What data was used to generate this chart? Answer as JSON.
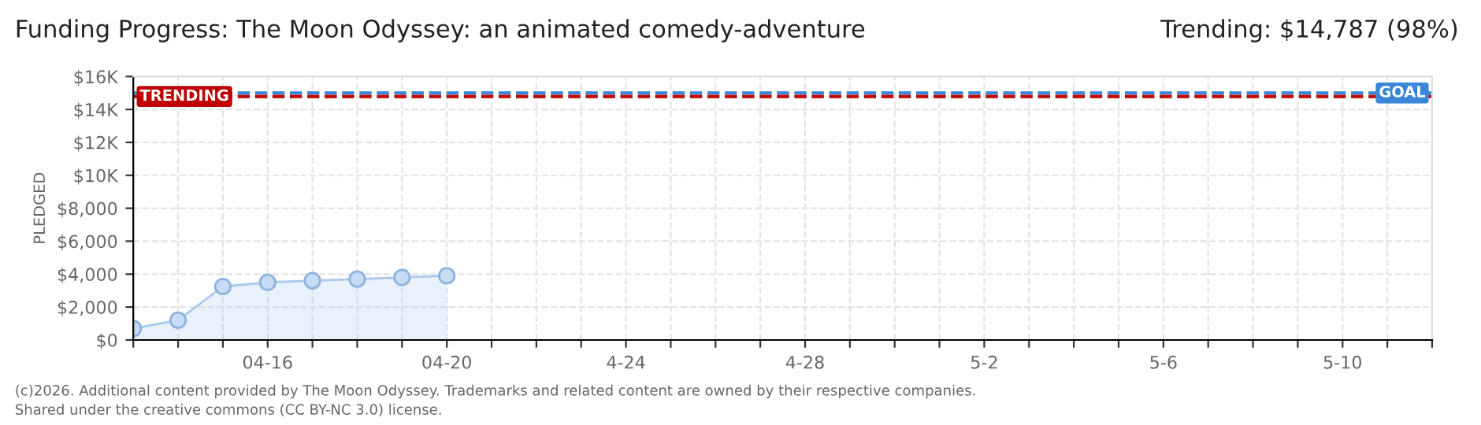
{
  "chart_data": {
    "type": "area",
    "title": "Funding Progress: The Moon Odyssey: an animated comedy-adventure",
    "ylabel": "PLEDGED",
    "x": [
      "2026-04-13",
      "2026-04-14",
      "2026-04-15",
      "2026-04-16",
      "2026-04-17",
      "2026-04-18",
      "2026-04-19",
      "2026-04-20"
    ],
    "series": [
      {
        "color": "#a9c9ec",
        "values": [
          700,
          1200,
          3250,
          3500,
          3600,
          3700,
          3800,
          3900
        ]
      }
    ],
    "marker": "circle",
    "xlim": [
      "2026-04-13",
      "2026-05-12"
    ],
    "xticks": [
      {
        "value": "2026-04-13",
        "label": null
      },
      {
        "value": "2026-04-14",
        "label": null
      },
      {
        "value": "2026-04-15",
        "label": null
      },
      {
        "value": "2026-04-16",
        "label": "04-16"
      },
      {
        "value": "2026-04-17",
        "label": null
      },
      {
        "value": "2026-04-18",
        "label": null
      },
      {
        "value": "2026-04-19",
        "label": null
      },
      {
        "value": "2026-04-20",
        "label": "04-20"
      },
      {
        "value": "2026-04-21",
        "label": null
      },
      {
        "value": "2026-04-22",
        "label": null
      },
      {
        "value": "2026-04-23",
        "label": null
      },
      {
        "value": "2026-04-24",
        "label": "4-24"
      },
      {
        "value": "2026-04-25",
        "label": null
      },
      {
        "value": "2026-04-26",
        "label": null
      },
      {
        "value": "2026-04-27",
        "label": null
      },
      {
        "value": "2026-04-28",
        "label": "4-28"
      },
      {
        "value": "2026-04-29",
        "label": null
      },
      {
        "value": "2026-04-30",
        "label": null
      },
      {
        "value": "2026-05-01",
        "label": null
      },
      {
        "value": "2026-05-02",
        "label": "5-2"
      },
      {
        "value": "2026-05-03",
        "label": null
      },
      {
        "value": "2026-05-04",
        "label": null
      },
      {
        "value": "2026-05-05",
        "label": null
      },
      {
        "value": "2026-05-06",
        "label": "5-6"
      },
      {
        "value": "2026-05-07",
        "label": null
      },
      {
        "value": "2026-05-08",
        "label": null
      },
      {
        "value": "2026-05-09",
        "label": null
      },
      {
        "value": "2026-05-10",
        "label": "5-10"
      },
      {
        "value": "2026-05-11",
        "label": null
      },
      {
        "value": "2026-05-12",
        "label": null
      }
    ],
    "ylim": [
      0,
      16000
    ],
    "yticks": [
      {
        "value": 0,
        "label": "$0"
      },
      {
        "value": 2000,
        "label": "$2,000"
      },
      {
        "value": 4000,
        "label": "$4,000"
      },
      {
        "value": 6000,
        "label": "$6,000"
      },
      {
        "value": 8000,
        "label": "$8,000"
      },
      {
        "value": 10000,
        "label": "$10K"
      },
      {
        "value": 12000,
        "label": "$12K"
      },
      {
        "value": 14000,
        "label": "$14K"
      },
      {
        "value": 16000,
        "label": "$16K"
      }
    ],
    "grid": true,
    "ref_lines": [
      {
        "axis": "y",
        "value": 15000,
        "label": "GOAL",
        "color": "#3a86d8",
        "line_style": "dashed"
      },
      {
        "axis": "y",
        "value": 14787,
        "label": "TRENDING",
        "color": "#c00000",
        "line_style": "dashed"
      }
    ],
    "annotations": [
      "Trending: $14,787 (98%)",
      "(c)2026. Additional content provided by The Moon Odyssey. Trademarks and related content are owned by their respective companies.",
      "Shared under the creative commons (CC BY-NC 3.0) license."
    ]
  }
}
